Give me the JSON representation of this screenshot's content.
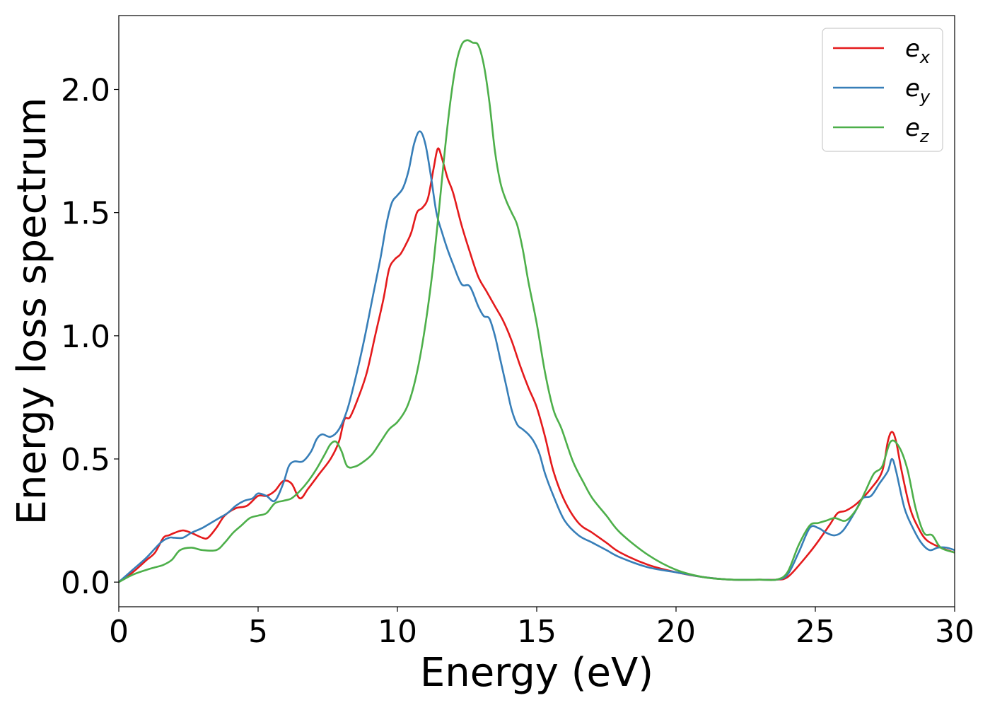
{
  "chart_data": {
    "type": "line",
    "xlabel": "Energy (eV)",
    "ylabel": "Energy loss spectrum",
    "xlim": [
      0,
      30
    ],
    "ylim": [
      -0.1,
      2.3
    ],
    "xticks": [
      0,
      5,
      10,
      15,
      20,
      25,
      30
    ],
    "xtick_labels": [
      "0",
      "5",
      "10",
      "15",
      "20",
      "25",
      "30"
    ],
    "yticks": [
      0.0,
      0.5,
      1.0,
      1.5,
      2.0
    ],
    "ytick_labels": [
      "0.0",
      "0.5",
      "1.0",
      "1.5",
      "2.0"
    ],
    "grid": false,
    "legend_position": "top-right",
    "series": [
      {
        "name": "e_x",
        "legend": {
          "base": "e",
          "sub": "x"
        },
        "color": "#e41a1c",
        "x": [
          0,
          0.5,
          1,
          1.3,
          1.6,
          1.8,
          2,
          2.3,
          2.6,
          3,
          3.2,
          3.5,
          3.8,
          4.2,
          4.6,
          5,
          5.3,
          5.6,
          5.9,
          6.2,
          6.5,
          6.8,
          7.2,
          7.6,
          7.9,
          8.1,
          8.3,
          8.6,
          8.9,
          9.2,
          9.5,
          9.7,
          9.9,
          10.1,
          10.3,
          10.5,
          10.7,
          10.9,
          11.1,
          11.3,
          11.45,
          11.6,
          11.8,
          12,
          12.3,
          12.6,
          12.9,
          13.2,
          13.5,
          13.8,
          14.1,
          14.4,
          14.7,
          15,
          15.3,
          15.6,
          16,
          16.5,
          17,
          17.5,
          18,
          19,
          20,
          21,
          22,
          23,
          23.6,
          24,
          24.5,
          25,
          25.5,
          25.8,
          26.1,
          26.5,
          27,
          27.4,
          27.6,
          27.75,
          27.9,
          28.1,
          28.4,
          28.7,
          29,
          29.5,
          30
        ],
        "values": [
          0.0,
          0.04,
          0.09,
          0.12,
          0.18,
          0.19,
          0.2,
          0.21,
          0.2,
          0.18,
          0.18,
          0.22,
          0.27,
          0.3,
          0.31,
          0.35,
          0.35,
          0.37,
          0.41,
          0.4,
          0.34,
          0.38,
          0.44,
          0.5,
          0.57,
          0.66,
          0.67,
          0.75,
          0.85,
          1.0,
          1.15,
          1.27,
          1.31,
          1.33,
          1.37,
          1.42,
          1.5,
          1.52,
          1.56,
          1.68,
          1.76,
          1.72,
          1.64,
          1.58,
          1.45,
          1.34,
          1.24,
          1.18,
          1.12,
          1.06,
          0.98,
          0.88,
          0.79,
          0.71,
          0.59,
          0.45,
          0.33,
          0.24,
          0.2,
          0.16,
          0.12,
          0.07,
          0.04,
          0.02,
          0.01,
          0.01,
          0.01,
          0.02,
          0.08,
          0.15,
          0.23,
          0.28,
          0.29,
          0.32,
          0.38,
          0.45,
          0.57,
          0.61,
          0.57,
          0.45,
          0.3,
          0.22,
          0.17,
          0.14,
          0.12
        ]
      },
      {
        "name": "e_y",
        "legend": {
          "base": "e",
          "sub": "y"
        },
        "color": "#377eb8",
        "x": [
          0,
          0.5,
          1,
          1.5,
          1.8,
          2,
          2.3,
          2.6,
          3,
          3.3,
          3.6,
          3.9,
          4.2,
          4.5,
          4.8,
          5,
          5.3,
          5.6,
          5.9,
          6.1,
          6.3,
          6.6,
          6.9,
          7.1,
          7.3,
          7.6,
          7.9,
          8.2,
          8.5,
          8.8,
          9.1,
          9.4,
          9.6,
          9.8,
          10,
          10.2,
          10.4,
          10.6,
          10.8,
          11,
          11.2,
          11.4,
          11.6,
          11.8,
          12,
          12.3,
          12.6,
          12.9,
          13.1,
          13.3,
          13.5,
          13.7,
          13.9,
          14.1,
          14.3,
          14.5,
          14.7,
          14.9,
          15.1,
          15.3,
          15.6,
          16,
          16.5,
          17,
          17.5,
          18,
          19,
          20,
          21,
          22,
          23,
          23.6,
          24,
          24.4,
          24.8,
          25.1,
          25.4,
          25.7,
          26,
          26.4,
          26.7,
          27,
          27.3,
          27.6,
          27.75,
          27.9,
          28.2,
          28.5,
          28.8,
          29.1,
          29.4,
          29.7,
          30
        ],
        "values": [
          0.0,
          0.05,
          0.1,
          0.16,
          0.18,
          0.18,
          0.18,
          0.2,
          0.22,
          0.24,
          0.26,
          0.28,
          0.31,
          0.33,
          0.34,
          0.36,
          0.35,
          0.33,
          0.4,
          0.47,
          0.49,
          0.49,
          0.53,
          0.58,
          0.6,
          0.59,
          0.62,
          0.7,
          0.83,
          0.98,
          1.15,
          1.32,
          1.45,
          1.54,
          1.57,
          1.6,
          1.67,
          1.78,
          1.83,
          1.78,
          1.65,
          1.5,
          1.42,
          1.35,
          1.29,
          1.21,
          1.2,
          1.12,
          1.08,
          1.07,
          1.0,
          0.9,
          0.8,
          0.7,
          0.64,
          0.62,
          0.6,
          0.57,
          0.52,
          0.44,
          0.35,
          0.25,
          0.19,
          0.16,
          0.13,
          0.1,
          0.06,
          0.04,
          0.02,
          0.01,
          0.01,
          0.01,
          0.03,
          0.12,
          0.22,
          0.22,
          0.2,
          0.19,
          0.21,
          0.28,
          0.34,
          0.35,
          0.4,
          0.45,
          0.5,
          0.45,
          0.3,
          0.22,
          0.16,
          0.13,
          0.14,
          0.14,
          0.13
        ]
      },
      {
        "name": "e_z",
        "legend": {
          "base": "e",
          "sub": "z"
        },
        "color": "#4daf4a",
        "x": [
          0,
          0.5,
          1,
          1.3,
          1.6,
          1.9,
          2.2,
          2.6,
          3,
          3.5,
          3.8,
          4.1,
          4.4,
          4.7,
          5,
          5.3,
          5.6,
          5.9,
          6.2,
          6.5,
          6.8,
          7.1,
          7.4,
          7.6,
          7.8,
          8,
          8.2,
          8.5,
          8.8,
          9.1,
          9.4,
          9.7,
          10,
          10.3,
          10.5,
          10.7,
          10.9,
          11.1,
          11.3,
          11.5,
          11.7,
          11.9,
          12.1,
          12.3,
          12.5,
          12.7,
          12.9,
          13.1,
          13.3,
          13.5,
          13.7,
          13.9,
          14.1,
          14.3,
          14.5,
          14.7,
          15,
          15.3,
          15.6,
          15.9,
          16.3,
          16.7,
          17,
          17.5,
          18,
          19,
          20,
          21,
          22,
          23,
          23.6,
          24,
          24.4,
          24.8,
          25.1,
          25.4,
          25.7,
          26.1,
          26.5,
          26.8,
          27.1,
          27.4,
          27.7,
          28,
          28.3,
          28.6,
          28.9,
          29.2,
          29.5,
          30
        ],
        "values": [
          0.0,
          0.03,
          0.05,
          0.06,
          0.07,
          0.09,
          0.13,
          0.14,
          0.13,
          0.13,
          0.16,
          0.2,
          0.23,
          0.26,
          0.27,
          0.28,
          0.32,
          0.33,
          0.34,
          0.37,
          0.41,
          0.46,
          0.52,
          0.56,
          0.57,
          0.53,
          0.47,
          0.47,
          0.49,
          0.52,
          0.57,
          0.62,
          0.65,
          0.7,
          0.76,
          0.85,
          0.97,
          1.12,
          1.3,
          1.52,
          1.75,
          1.95,
          2.1,
          2.18,
          2.2,
          2.19,
          2.18,
          2.1,
          1.95,
          1.75,
          1.62,
          1.55,
          1.5,
          1.45,
          1.35,
          1.22,
          1.05,
          0.85,
          0.7,
          0.62,
          0.49,
          0.4,
          0.34,
          0.27,
          0.2,
          0.11,
          0.05,
          0.02,
          0.01,
          0.01,
          0.01,
          0.04,
          0.15,
          0.23,
          0.24,
          0.25,
          0.26,
          0.25,
          0.3,
          0.37,
          0.44,
          0.47,
          0.57,
          0.55,
          0.46,
          0.3,
          0.2,
          0.19,
          0.14,
          0.12
        ]
      }
    ]
  }
}
